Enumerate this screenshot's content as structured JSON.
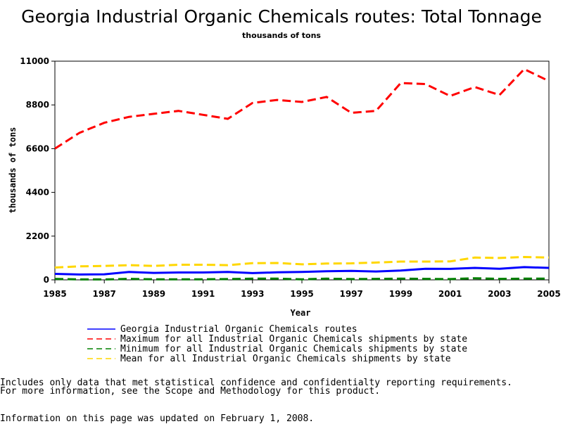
{
  "chart_data": {
    "type": "line",
    "title": "Georgia Industrial Organic Chemicals routes: Total Tonnage",
    "subtitle": "thousands of tons",
    "xlabel": "Year",
    "ylabel": "thousands of tons",
    "xlim": [
      1985,
      2005
    ],
    "ylim": [
      0,
      11000
    ],
    "x_ticks": [
      "1985",
      "1987",
      "1989",
      "1991",
      "1993",
      "1995",
      "1997",
      "1999",
      "2001",
      "2003",
      "2005"
    ],
    "y_ticks": [
      "0",
      "2200",
      "4400",
      "6600",
      "8800",
      "11000"
    ],
    "x": [
      1985,
      1986,
      1987,
      1988,
      1989,
      1990,
      1991,
      1992,
      1993,
      1994,
      1995,
      1996,
      1997,
      1998,
      1999,
      2000,
      2001,
      2002,
      2003,
      2004,
      2005
    ],
    "series": [
      {
        "name": "Georgia Industrial Organic Chemicals routes",
        "color": "#0000ff",
        "dash": "solid",
        "values": [
          300,
          270,
          280,
          400,
          350,
          370,
          370,
          400,
          340,
          380,
          400,
          430,
          450,
          420,
          470,
          560,
          550,
          600,
          560,
          640,
          600
        ]
      },
      {
        "name": "Maximum for all Industrial Organic Chemicals shipments by state",
        "color": "#ff0000",
        "dash": "dashed",
        "values": [
          6600,
          7400,
          7900,
          8200,
          8350,
          8500,
          8300,
          8100,
          8900,
          9050,
          8950,
          9200,
          8400,
          8500,
          9900,
          9850,
          9250,
          9700,
          9300,
          10600,
          10000
        ]
      },
      {
        "name": "Minimum for all Industrial Organic Chemicals shipments by state",
        "color": "#008000",
        "dash": "dashed",
        "values": [
          50,
          20,
          20,
          50,
          30,
          30,
          30,
          40,
          60,
          60,
          30,
          60,
          40,
          50,
          60,
          50,
          40,
          80,
          50,
          60,
          60
        ]
      },
      {
        "name": "Mean for all Industrial Organic Chemicals shipments by state",
        "color": "#ffd700",
        "dash": "dashed",
        "values": [
          620,
          680,
          700,
          740,
          700,
          760,
          760,
          740,
          840,
          850,
          780,
          820,
          830,
          870,
          920,
          920,
          930,
          1120,
          1100,
          1150,
          1120
        ]
      }
    ],
    "legend_position": "bottom",
    "grid": false
  },
  "footnotes": {
    "line1": "Includes only data that met statistical confidence and confidentialty reporting requirements.",
    "line2": "For more information, see the Scope and Methodology for this product.",
    "updated": "Information on this page was updated on February 1, 2008."
  }
}
